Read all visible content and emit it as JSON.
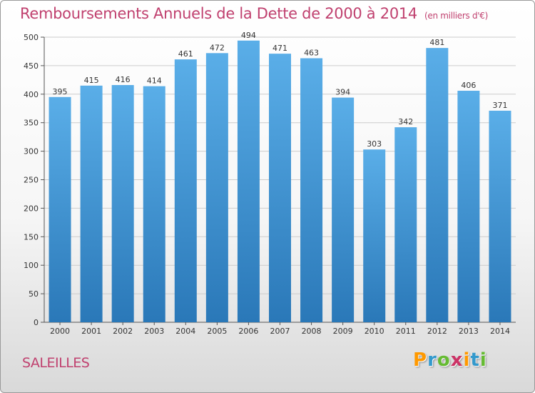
{
  "title": "Remboursements Annuels de la Dette de 2000 à 2014",
  "unit": "(en milliers d'€)",
  "city": "SALEILLES",
  "logo": {
    "text": "Proxiti",
    "colors": [
      "#ff9900",
      "#3399cc",
      "#66bb33",
      "#cc3366",
      "#ff9900",
      "#3399cc",
      "#66bb33"
    ]
  },
  "colors": {
    "accent": "#c0416f",
    "bar_top": "#5aaee8",
    "bar_bottom": "#2a78b8",
    "grid": "#cccccc"
  },
  "chart_data": {
    "type": "bar",
    "title": "Remboursements Annuels de la Dette de 2000 à 2014",
    "xlabel": "",
    "ylabel": "",
    "categories": [
      "2000",
      "2001",
      "2002",
      "2003",
      "2004",
      "2005",
      "2006",
      "2007",
      "2008",
      "2009",
      "2010",
      "2011",
      "2012",
      "2013",
      "2014"
    ],
    "values": [
      395,
      415,
      416,
      414,
      461,
      472,
      494,
      471,
      463,
      394,
      303,
      342,
      481,
      406,
      371
    ],
    "ylim": [
      0,
      500
    ],
    "yticks": [
      0,
      50,
      100,
      150,
      200,
      250,
      300,
      350,
      400,
      450,
      500
    ],
    "grid": true,
    "data_labels": true
  }
}
